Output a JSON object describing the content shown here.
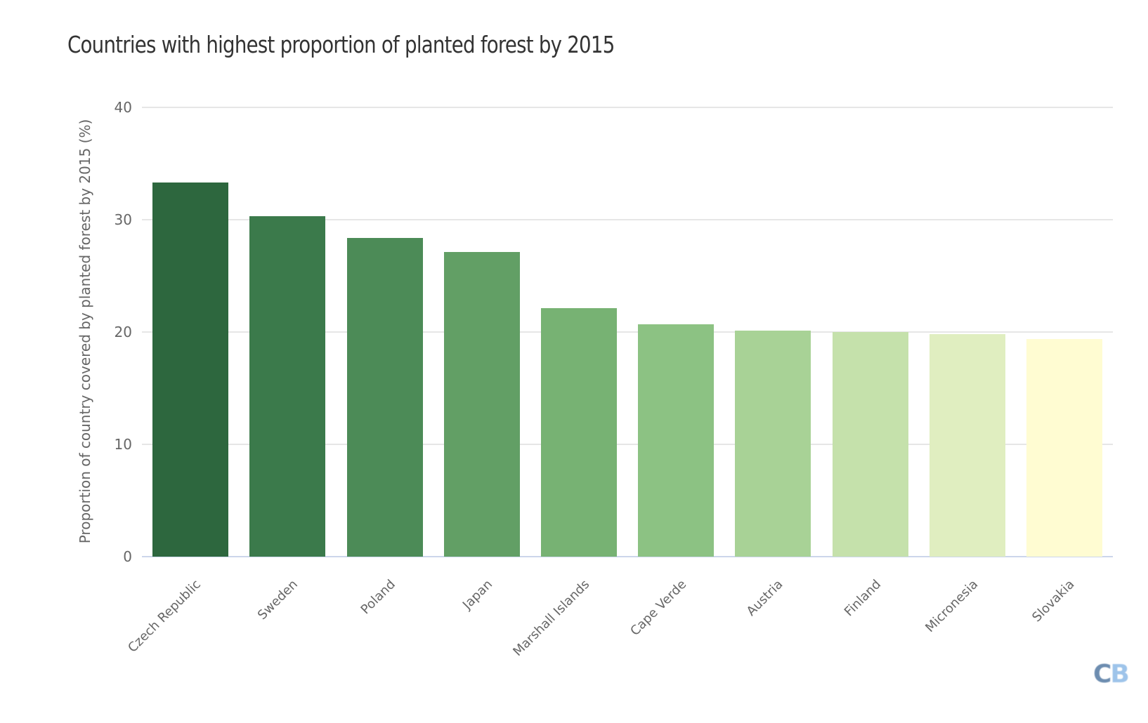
{
  "title": "Countries with highest proportion of planted forest by 2015",
  "y_axis": {
    "label": "Proportion of country covered by planted forest by 2015 (%)",
    "ticks": [
      "0",
      "10",
      "20",
      "30",
      "40"
    ]
  },
  "x_axis": {
    "labels": [
      "Czech Republic",
      "Sweden",
      "Poland",
      "Japan",
      "Marshall Islands",
      "Cape Verde",
      "Austria",
      "Finland",
      "Micronesia",
      "Slovakia"
    ]
  },
  "logo": {
    "left": "C",
    "right": "B"
  },
  "colors": {
    "bars": [
      "#2d673e",
      "#3b7a4b",
      "#4c8b57",
      "#629f65",
      "#77b273",
      "#8cc283",
      "#a8d296",
      "#c5e1ab",
      "#e0eec0",
      "#fffcd2"
    ],
    "grid": "#e6e6e6",
    "baseline": "#ccd6eb"
  },
  "chart_data": {
    "type": "bar",
    "title": "Countries with highest proportion of planted forest by 2015",
    "xlabel": "",
    "ylabel": "Proportion of country covered by planted forest by 2015 (%)",
    "categories": [
      "Czech Republic",
      "Sweden",
      "Poland",
      "Japan",
      "Marshall Islands",
      "Cape Verde",
      "Austria",
      "Finland",
      "Micronesia",
      "Slovakia"
    ],
    "values": [
      33.3,
      30.3,
      28.4,
      27.1,
      22.1,
      20.7,
      20.1,
      20.0,
      19.8,
      19.4
    ],
    "ylim": [
      0,
      40
    ],
    "yticks": [
      0,
      10,
      20,
      30,
      40
    ],
    "grid": true,
    "legend": null
  }
}
